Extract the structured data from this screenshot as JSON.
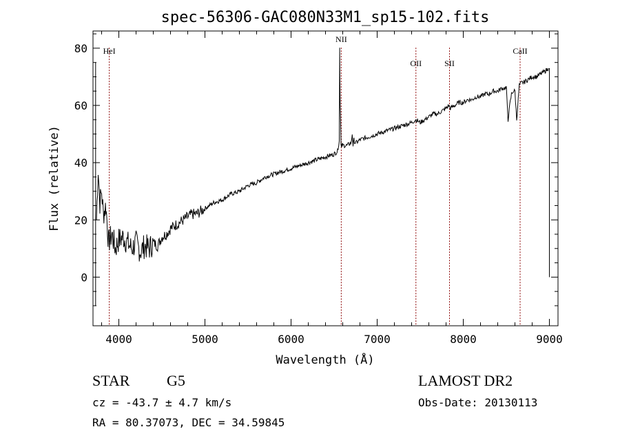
{
  "chart_data": {
    "type": "line",
    "title": "spec-56306-GAC080N33M1_sp15-102.fits",
    "xlabel": "Wavelength (Å)",
    "ylabel": "Flux (relative)",
    "xlim": [
      3700,
      9100
    ],
    "ylim": [
      -17,
      86
    ],
    "xticks": [
      4000,
      5000,
      6000,
      7000,
      8000,
      9000
    ],
    "yticks": [
      0,
      20,
      40,
      60,
      80
    ],
    "grid": false,
    "series": [
      {
        "values_x": [
          3740,
          3760,
          3780,
          3800,
          3820,
          3850,
          3880,
          3920,
          3960,
          4000,
          4050,
          4100,
          4150,
          4200,
          4250,
          4300,
          4350,
          4400,
          4450,
          4500,
          4550,
          4600,
          4650,
          4700,
          4750,
          4800,
          4850,
          4900,
          4950,
          5000,
          5100,
          5200,
          5300,
          5400,
          5500,
          5600,
          5700,
          5800,
          5900,
          6000,
          6100,
          6200,
          6300,
          6400,
          6500,
          6540,
          6560,
          6565,
          6570,
          6575,
          6580,
          6585,
          6590,
          6600,
          6620,
          6650,
          6700,
          6710,
          6720,
          6730,
          6740,
          6760,
          6800,
          6900,
          7000,
          7100,
          7200,
          7300,
          7400,
          7450,
          7500,
          7550,
          7600,
          7650,
          7700,
          7750,
          7800,
          7830,
          7850,
          7900,
          7950,
          8000,
          8050,
          8100,
          8150,
          8200,
          8250,
          8300,
          8350,
          8400,
          8450,
          8500,
          8520,
          8540,
          8560,
          8580,
          8600,
          8620,
          8650,
          8680,
          8700,
          8750,
          8800,
          8850,
          8900,
          8950,
          8990
        ],
        "values_y": [
          20,
          38,
          26,
          30,
          22,
          25,
          12,
          15,
          10,
          13,
          14,
          12,
          10,
          12,
          9,
          11,
          10,
          12,
          11,
          14,
          15,
          17,
          18,
          19,
          20,
          21,
          22,
          22,
          23,
          24,
          26,
          27,
          29,
          30,
          32,
          33,
          35,
          36,
          37,
          38,
          39,
          40,
          41,
          42,
          43,
          44,
          48,
          80,
          60,
          55,
          47,
          45,
          46,
          46,
          46,
          46,
          47,
          50,
          46,
          48,
          47,
          47,
          48,
          49,
          50,
          51,
          52,
          53,
          54,
          55,
          54,
          55,
          56,
          57,
          57,
          58,
          59,
          60,
          59,
          60,
          61,
          61,
          62,
          62,
          63,
          63,
          64,
          64,
          65,
          65,
          66,
          66,
          55,
          60,
          64,
          65,
          65,
          55,
          67,
          68,
          68,
          69,
          70,
          70,
          71,
          72,
          73
        ]
      }
    ],
    "annotations": [
      {
        "label": "HeI",
        "x": 3889
      },
      {
        "label": "NII",
        "x": 6583
      },
      {
        "label": "OII",
        "x": 7450
      },
      {
        "label": "SII",
        "x": 7840
      },
      {
        "label": "CaII",
        "x": 8660
      }
    ]
  },
  "info": {
    "object_type": "STAR",
    "subclass": "G5",
    "survey": "LAMOST DR2",
    "velocity": "cz = -43.7 ± 4.7 km/s",
    "obs_date": "Obs-Date: 20130113",
    "coords": "RA =  80.37073, DEC =  34.59845"
  },
  "colors": {
    "spectrum": "#000000",
    "line_markers": "#8b0000"
  }
}
